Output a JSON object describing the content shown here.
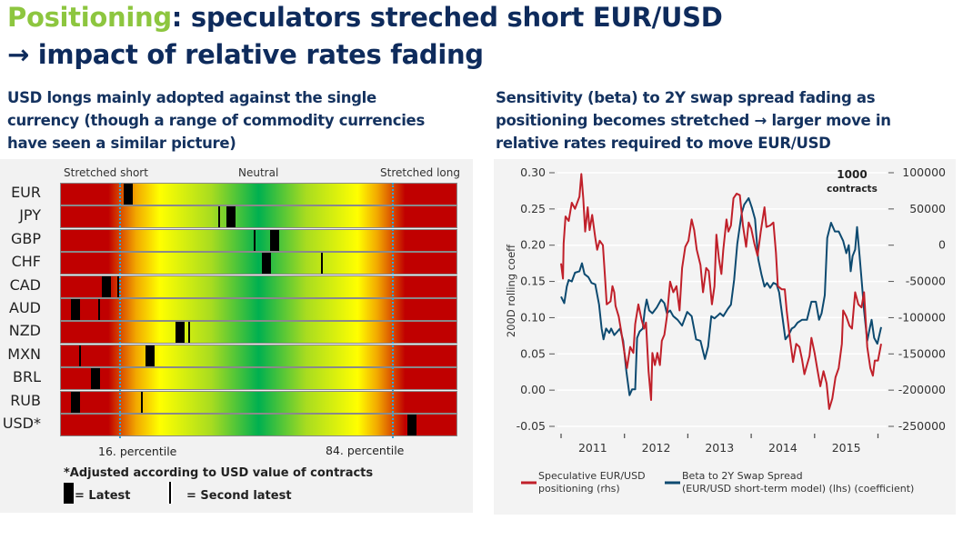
{
  "title": {
    "highlight": "Positioning",
    "line1_rest": ": speculators streched short EUR/USD",
    "line2": "→ impact of relative rates fading"
  },
  "left_subtitle": [
    "USD longs mainly adopted against the single",
    "currency (though a range of commodity currencies",
    "have seen a similar picture)"
  ],
  "right_subtitle": [
    "Sensitivity (beta) to 2Y swap spread fading as",
    "positioning becomes stretched → larger move in",
    "relative rates required to move EUR/USD"
  ],
  "colors": {
    "title": "#0e2b5c",
    "highlight": "#8dc63f",
    "red_series": "#c0202a",
    "blue_series": "#0d4a70",
    "marker_line": "#29a8e0"
  },
  "chart_data": [
    {
      "type": "heatmap",
      "scale_labels": {
        "left": "Stretched short",
        "center": "Neutral",
        "right": "Stretched long"
      },
      "percentile_labels": [
        "16. percentile",
        "84. percentile"
      ],
      "percentile_lines": [
        16,
        84
      ],
      "note": "*Adjusted according to USD value of contracts",
      "legend": {
        "latest": "= Latest",
        "second": "= Second latest"
      },
      "rows": [
        {
          "label": "EUR",
          "latest": 17,
          "second": null
        },
        {
          "label": "JPY",
          "latest": 43,
          "second": 40
        },
        {
          "label": "GBP",
          "latest": 54,
          "second": 49
        },
        {
          "label": "CHF",
          "latest": 52,
          "second": 66
        },
        {
          "label": "CAD",
          "latest": 11.5,
          "second": 14.5
        },
        {
          "label": "AUD",
          "latest": 3.7,
          "second": 9.7
        },
        {
          "label": "NZD",
          "latest": 30,
          "second": 32.4
        },
        {
          "label": "MXN",
          "latest": 22.5,
          "second": 4.8
        },
        {
          "label": "BRL",
          "latest": 8.7,
          "second": null
        },
        {
          "label": "RUB",
          "latest": 3.7,
          "second": 20.5
        },
        {
          "label": "USD*",
          "latest": 88.7,
          "second": null
        }
      ]
    },
    {
      "type": "line",
      "ylabel": "200D rolling coeff",
      "y2label": [
        "1000",
        "contracts"
      ],
      "ylim": [
        -0.05,
        0.3
      ],
      "yticks": [
        "0.30",
        "0.25",
        "0.20",
        "0.15",
        "0.10",
        "0.05",
        "0.00",
        "-0.05"
      ],
      "y2lim": [
        -250000,
        100000
      ],
      "y2ticks": [
        "100000",
        "50000",
        "0",
        "-50000",
        "-100000",
        "-150000",
        "-200000",
        "-250000"
      ],
      "xticks": [
        "2011",
        "2012",
        "2013",
        "2014",
        "2015"
      ],
      "grid": true,
      "legend_position": "bottom",
      "series": [
        {
          "name_lines": [
            "Speculative EUR/USD",
            "positioning (rhs)"
          ],
          "axis": "right",
          "color": "#c0202a",
          "points": [
            [
              2011.0,
              -25200
            ],
            [
              2011.03,
              -46100
            ],
            [
              2011.04,
              2000
            ],
            [
              2011.07,
              39700
            ],
            [
              2011.12,
              33400
            ],
            [
              2011.17,
              58600
            ],
            [
              2011.22,
              50200
            ],
            [
              2011.29,
              66900
            ],
            [
              2011.32,
              98300
            ],
            [
              2011.35,
              64800
            ],
            [
              2011.38,
              18800
            ],
            [
              2011.42,
              52300
            ],
            [
              2011.45,
              20900
            ],
            [
              2011.49,
              41800
            ],
            [
              2011.54,
              10400
            ],
            [
              2011.57,
              -6300
            ],
            [
              2011.61,
              6200
            ],
            [
              2011.66,
              0
            ],
            [
              2011.69,
              -39800
            ],
            [
              2011.72,
              -81700
            ],
            [
              2011.78,
              -77500
            ],
            [
              2011.81,
              -56600
            ],
            [
              2011.84,
              -65000
            ],
            [
              2011.86,
              -83800
            ],
            [
              2011.91,
              -98400
            ],
            [
              2011.95,
              -119400
            ],
            [
              2012.0,
              -148700
            ],
            [
              2012.04,
              -169600
            ],
            [
              2012.09,
              -140300
            ],
            [
              2012.14,
              -148700
            ],
            [
              2012.17,
              -108900
            ],
            [
              2012.22,
              -81700
            ],
            [
              2012.27,
              -102600
            ],
            [
              2012.31,
              -115200
            ],
            [
              2012.34,
              -106800
            ],
            [
              2012.38,
              -173800
            ],
            [
              2012.42,
              -213600
            ],
            [
              2012.44,
              -148700
            ],
            [
              2012.48,
              -165400
            ],
            [
              2012.52,
              -148700
            ],
            [
              2012.56,
              -165400
            ],
            [
              2012.59,
              -131900
            ],
            [
              2012.63,
              -123600
            ],
            [
              2012.67,
              -98400
            ],
            [
              2012.72,
              -50300
            ],
            [
              2012.77,
              -65000
            ],
            [
              2012.82,
              -56600
            ],
            [
              2012.87,
              -90100
            ],
            [
              2012.91,
              -31500
            ],
            [
              2012.96,
              -2200
            ],
            [
              2013.01,
              6200
            ],
            [
              2013.06,
              35500
            ],
            [
              2013.1,
              20900
            ],
            [
              2013.14,
              -6300
            ],
            [
              2013.2,
              -27300
            ],
            [
              2013.24,
              -65000
            ],
            [
              2013.29,
              -31500
            ],
            [
              2013.33,
              -35600
            ],
            [
              2013.38,
              -81700
            ],
            [
              2013.42,
              -56600
            ],
            [
              2013.45,
              14600
            ],
            [
              2013.49,
              -18900
            ],
            [
              2013.53,
              -39800
            ],
            [
              2013.56,
              -6300
            ],
            [
              2013.61,
              35500
            ],
            [
              2013.64,
              18800
            ],
            [
              2013.68,
              27200
            ],
            [
              2013.72,
              64800
            ],
            [
              2013.77,
              71100
            ],
            [
              2013.82,
              69000
            ],
            [
              2013.87,
              27200
            ],
            [
              2013.92,
              -2200
            ],
            [
              2013.96,
              31300
            ],
            [
              2014.0,
              23000
            ],
            [
              2014.05,
              2000
            ],
            [
              2014.1,
              -14700
            ],
            [
              2014.15,
              18800
            ],
            [
              2014.21,
              52300
            ],
            [
              2014.24,
              25100
            ],
            [
              2014.3,
              27200
            ],
            [
              2014.35,
              31300
            ],
            [
              2014.39,
              -10500
            ],
            [
              2014.42,
              -56600
            ],
            [
              2014.48,
              -60800
            ],
            [
              2014.53,
              -60800
            ],
            [
              2014.56,
              -90100
            ],
            [
              2014.61,
              -127800
            ],
            [
              2014.66,
              -161200
            ],
            [
              2014.71,
              -136100
            ],
            [
              2014.76,
              -140300
            ],
            [
              2014.8,
              -157100
            ],
            [
              2014.84,
              -178000
            ],
            [
              2014.88,
              -165400
            ],
            [
              2014.92,
              -152900
            ],
            [
              2014.95,
              -127800
            ],
            [
              2015.0,
              -148700
            ],
            [
              2015.04,
              -169600
            ],
            [
              2015.09,
              -194700
            ],
            [
              2015.14,
              -173800
            ],
            [
              2015.19,
              -190600
            ],
            [
              2015.23,
              -226100
            ],
            [
              2015.28,
              -211500
            ],
            [
              2015.33,
              -182200
            ],
            [
              2015.38,
              -169600
            ],
            [
              2015.43,
              -136100
            ],
            [
              2015.45,
              -90100
            ],
            [
              2015.5,
              -98400
            ],
            [
              2015.55,
              -111000
            ],
            [
              2015.59,
              -115200
            ],
            [
              2015.64,
              -65000
            ],
            [
              2015.69,
              -81700
            ],
            [
              2015.74,
              -85900
            ],
            [
              2015.78,
              -65000
            ],
            [
              2015.83,
              -140300
            ],
            [
              2015.88,
              -169600
            ],
            [
              2015.92,
              -180100
            ],
            [
              2015.95,
              -159200
            ],
            [
              2016.0,
              -159200
            ],
            [
              2016.05,
              -136100
            ]
          ]
        },
        {
          "name_lines": [
            "Beta to 2Y Swap Spread",
            "(EUR/USD short-term model) (lhs) (coefficient)"
          ],
          "axis": "left",
          "color": "#0d4a70",
          "points": [
            [
              2011.0,
              0.129
            ],
            [
              2011.05,
              0.12
            ],
            [
              2011.09,
              0.143
            ],
            [
              2011.12,
              0.152
            ],
            [
              2011.17,
              0.15
            ],
            [
              2011.22,
              0.162
            ],
            [
              2011.29,
              0.164
            ],
            [
              2011.33,
              0.175
            ],
            [
              2011.37,
              0.16
            ],
            [
              2011.43,
              0.156
            ],
            [
              2011.48,
              0.148
            ],
            [
              2011.54,
              0.146
            ],
            [
              2011.6,
              0.118
            ],
            [
              2011.64,
              0.085
            ],
            [
              2011.67,
              0.07
            ],
            [
              2011.71,
              0.085
            ],
            [
              2011.76,
              0.079
            ],
            [
              2011.79,
              0.085
            ],
            [
              2011.84,
              0.076
            ],
            [
              2011.89,
              0.081
            ],
            [
              2011.93,
              0.085
            ],
            [
              2011.98,
              0.068
            ],
            [
              2012.03,
              0.026
            ],
            [
              2012.08,
              -0.007
            ],
            [
              2012.12,
              0.001
            ],
            [
              2012.17,
              0.001
            ],
            [
              2012.2,
              0.072
            ],
            [
              2012.24,
              0.081
            ],
            [
              2012.29,
              0.085
            ],
            [
              2012.32,
              0.11
            ],
            [
              2012.35,
              0.125
            ],
            [
              2012.39,
              0.11
            ],
            [
              2012.44,
              0.106
            ],
            [
              2012.51,
              0.114
            ],
            [
              2012.58,
              0.125
            ],
            [
              2012.63,
              0.12
            ],
            [
              2012.67,
              0.106
            ],
            [
              2012.72,
              0.11
            ],
            [
              2012.77,
              0.102
            ],
            [
              2012.84,
              0.097
            ],
            [
              2012.91,
              0.089
            ],
            [
              2012.99,
              0.108
            ],
            [
              2013.06,
              0.102
            ],
            [
              2013.13,
              0.07
            ],
            [
              2013.2,
              0.068
            ],
            [
              2013.27,
              0.043
            ],
            [
              2013.32,
              0.06
            ],
            [
              2013.37,
              0.102
            ],
            [
              2013.42,
              0.099
            ],
            [
              2013.46,
              0.102
            ],
            [
              2013.51,
              0.106
            ],
            [
              2013.56,
              0.102
            ],
            [
              2013.63,
              0.112
            ],
            [
              2013.68,
              0.118
            ],
            [
              2013.73,
              0.152
            ],
            [
              2013.78,
              0.202
            ],
            [
              2013.85,
              0.244
            ],
            [
              2013.89,
              0.256
            ],
            [
              2013.96,
              0.265
            ],
            [
              2014.01,
              0.252
            ],
            [
              2014.06,
              0.236
            ],
            [
              2014.11,
              0.181
            ],
            [
              2014.16,
              0.16
            ],
            [
              2014.21,
              0.143
            ],
            [
              2014.25,
              0.148
            ],
            [
              2014.3,
              0.141
            ],
            [
              2014.35,
              0.148
            ],
            [
              2014.4,
              0.146
            ],
            [
              2014.44,
              0.135
            ],
            [
              2014.49,
              0.102
            ],
            [
              2014.54,
              0.07
            ],
            [
              2014.59,
              0.076
            ],
            [
              2014.64,
              0.085
            ],
            [
              2014.68,
              0.087
            ],
            [
              2014.73,
              0.093
            ],
            [
              2014.8,
              0.097
            ],
            [
              2014.88,
              0.097
            ],
            [
              2014.95,
              0.122
            ],
            [
              2015.02,
              0.122
            ],
            [
              2015.07,
              0.097
            ],
            [
              2015.11,
              0.106
            ],
            [
              2015.16,
              0.131
            ],
            [
              2015.2,
              0.21
            ],
            [
              2015.26,
              0.231
            ],
            [
              2015.32,
              0.219
            ],
            [
              2015.38,
              0.219
            ],
            [
              2015.45,
              0.206
            ],
            [
              2015.5,
              0.189
            ],
            [
              2015.54,
              0.2
            ],
            [
              2015.57,
              0.164
            ],
            [
              2015.6,
              0.185
            ],
            [
              2015.64,
              0.194
            ],
            [
              2015.67,
              0.225
            ],
            [
              2015.71,
              0.185
            ],
            [
              2015.75,
              0.143
            ],
            [
              2015.78,
              0.11
            ],
            [
              2015.83,
              0.068
            ],
            [
              2015.87,
              0.085
            ],
            [
              2015.9,
              0.097
            ],
            [
              2015.94,
              0.072
            ],
            [
              2015.99,
              0.064
            ],
            [
              2016.05,
              0.087
            ]
          ]
        }
      ]
    }
  ]
}
